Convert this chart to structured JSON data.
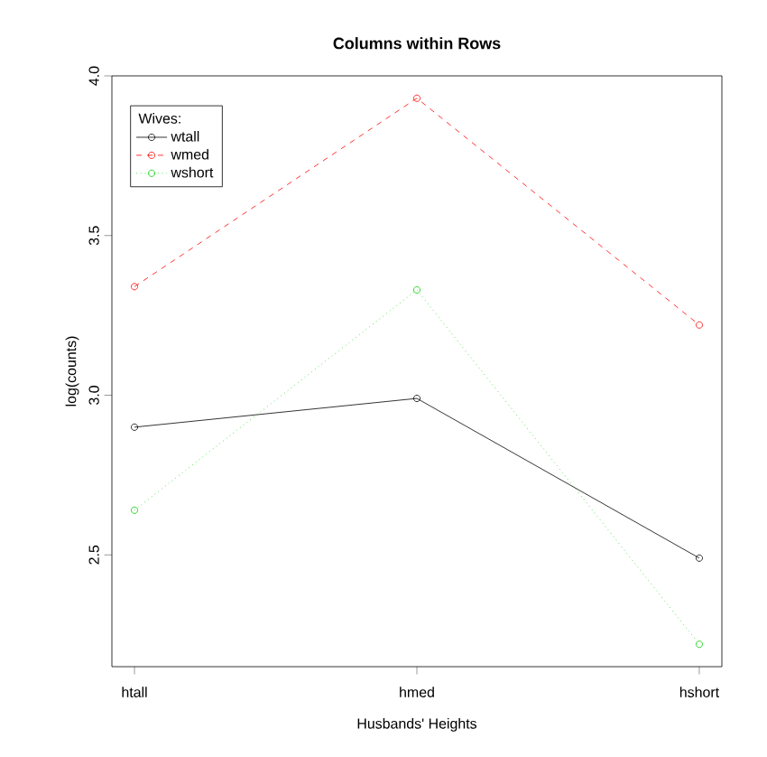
{
  "chart_data": {
    "type": "line",
    "title": "**Columns within Rows**",
    "xlabel": "Husbands' Heights",
    "ylabel": "log(counts)",
    "legend_title": "Wives:",
    "categories": [
      "htall",
      "hmed",
      "hshort"
    ],
    "series": [
      {
        "name": "wtall",
        "color": "#000000",
        "line_style": "solid",
        "values": [
          2.9,
          2.99,
          2.49
        ]
      },
      {
        "name": "wmed",
        "color": "#ff0000",
        "line_style": "dashed",
        "values": [
          3.34,
          3.93,
          3.22
        ]
      },
      {
        "name": "wshort",
        "color": "#00cd00",
        "line_style": "dotted",
        "values": [
          2.64,
          3.33,
          2.22
        ]
      }
    ],
    "ylim": [
      2.15,
      4.0
    ],
    "yticks": [
      2.5,
      {
        "value": 3,
        "label": "3.0"
      },
      3.5,
      {
        "value": 4,
        "label": "4.0"
      }
    ],
    "grid": false,
    "legend": "top left",
    "marker": "circle"
  }
}
